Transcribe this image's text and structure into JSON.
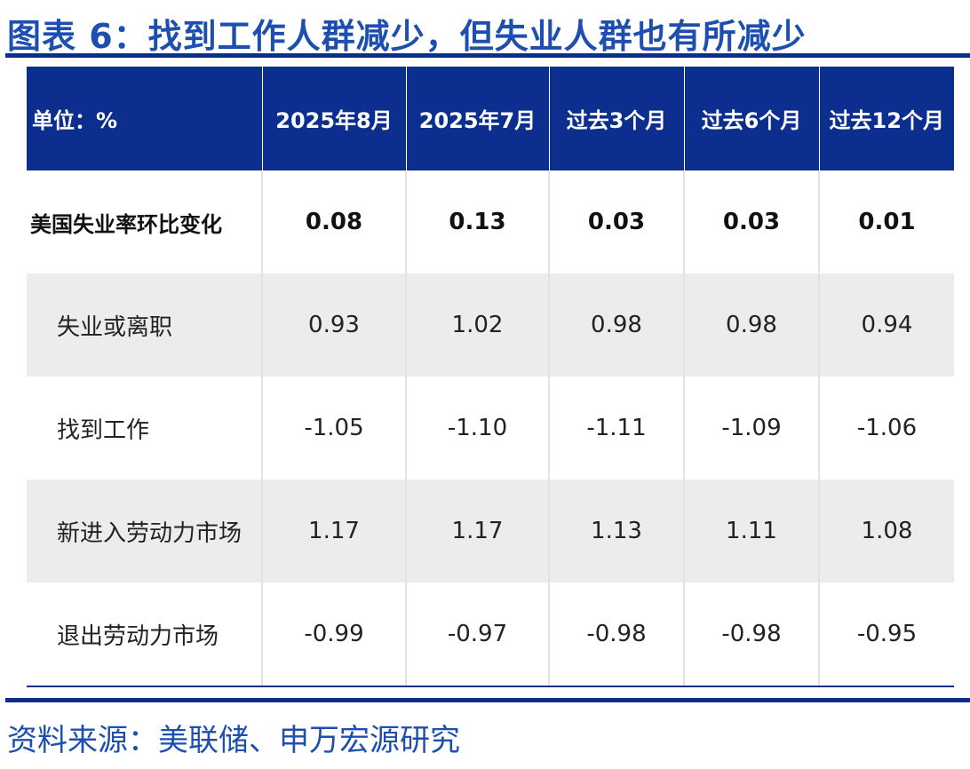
{
  "title": "图表 6：找到工作人群减少，但失业人群也有所减少",
  "source": "资料来源：美联储、申万宏源研究",
  "table": {
    "headers": [
      "单位：%",
      "2025年8月",
      "2025年7月",
      "过去3个月",
      "过去6个月",
      "过去12个月"
    ],
    "rows": [
      {
        "label": "美国失业率环比变化",
        "values": [
          "0.08",
          "0.13",
          "0.03",
          "0.03",
          "0.01"
        ]
      },
      {
        "label": "失业或离职",
        "values": [
          "0.93",
          "1.02",
          "0.98",
          "0.98",
          "0.94"
        ]
      },
      {
        "label": "找到工作",
        "values": [
          "-1.05",
          "-1.10",
          "-1.11",
          "-1.09",
          "-1.06"
        ]
      },
      {
        "label": "新进入劳动力市场",
        "values": [
          "1.17",
          "1.17",
          "1.13",
          "1.11",
          "1.08"
        ]
      },
      {
        "label": "退出劳动力市场",
        "values": [
          "-0.99",
          "-0.97",
          "-0.98",
          "-0.98",
          "-0.95"
        ]
      }
    ]
  },
  "colors": {
    "accent": "#1d4fb0",
    "header_bg": "#0c2e8f",
    "shade_bg": "#ececec"
  }
}
